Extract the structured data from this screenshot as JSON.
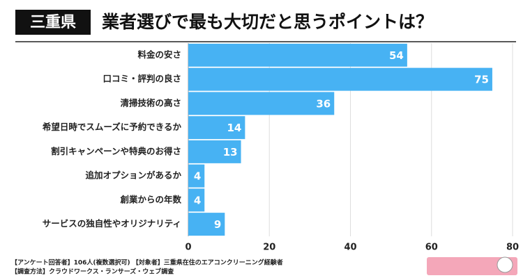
{
  "chart_data": {
    "type": "bar",
    "orientation": "horizontal",
    "title_tag": "三重県",
    "title": "業者選びで最も大切だと思うポイントは？",
    "categories": [
      "料金の安さ",
      "口コミ・評判の良さ",
      "清掃技術の高さ",
      "希望日時でスムーズに予約できるか",
      "割引キャンペーンや特典のお得さ",
      "追加オプションがあるか",
      "創業からの年数",
      "サービスの独自性やオリジナリティ"
    ],
    "values": [
      54,
      75,
      36,
      14,
      13,
      4,
      4,
      9
    ],
    "color": "#47b2f3",
    "xlim": [
      0,
      80
    ],
    "xticks": [
      0,
      20,
      40,
      60,
      80
    ],
    "grid": true,
    "notes": [
      "【アンケート回答者】106人(複数選択可) 【対象者】三重県在住のエアコンクリーニング経験者",
      "【調査方法】クラウドワークス・ランサーズ・ウェブ調査"
    ]
  }
}
